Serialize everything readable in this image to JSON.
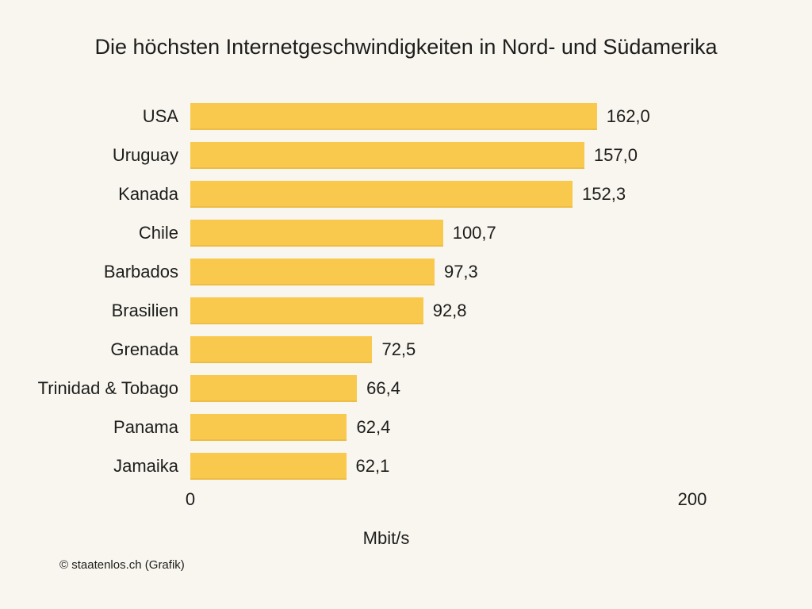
{
  "chart_data": {
    "type": "bar",
    "orientation": "horizontal",
    "title": "Die höchsten Internetgeschwindigkeiten in Nord- und Südamerika",
    "categories": [
      "USA",
      "Uruguay",
      "Kanada",
      "Chile",
      "Barbados",
      "Brasilien",
      "Grenada",
      "Trinidad & Tobago",
      "Panama",
      "Jamaika"
    ],
    "values": [
      162.0,
      157.0,
      152.3,
      100.7,
      97.3,
      92.8,
      72.5,
      66.4,
      62.4,
      62.1
    ],
    "value_labels": [
      "162,0",
      "157,0",
      "152,3",
      "100,7",
      "97,3",
      "92,8",
      "72,5",
      "66,4",
      "62,4",
      "62,1"
    ],
    "xlabel": "Mbit/s",
    "ylabel": "",
    "xlim": [
      0,
      200
    ],
    "xticks": [
      0,
      200
    ],
    "xtick_labels": [
      "0",
      "200"
    ],
    "grid": false,
    "legend": false,
    "unit": "Mbit/s"
  },
  "footer": {
    "copyright": "© staatenlos.ch (Grafik)"
  },
  "colors": {
    "background": "#F8F6EF",
    "bar": "#F8C94C",
    "bar_edge": "#EDBD45",
    "text": "#1D1D1B"
  }
}
